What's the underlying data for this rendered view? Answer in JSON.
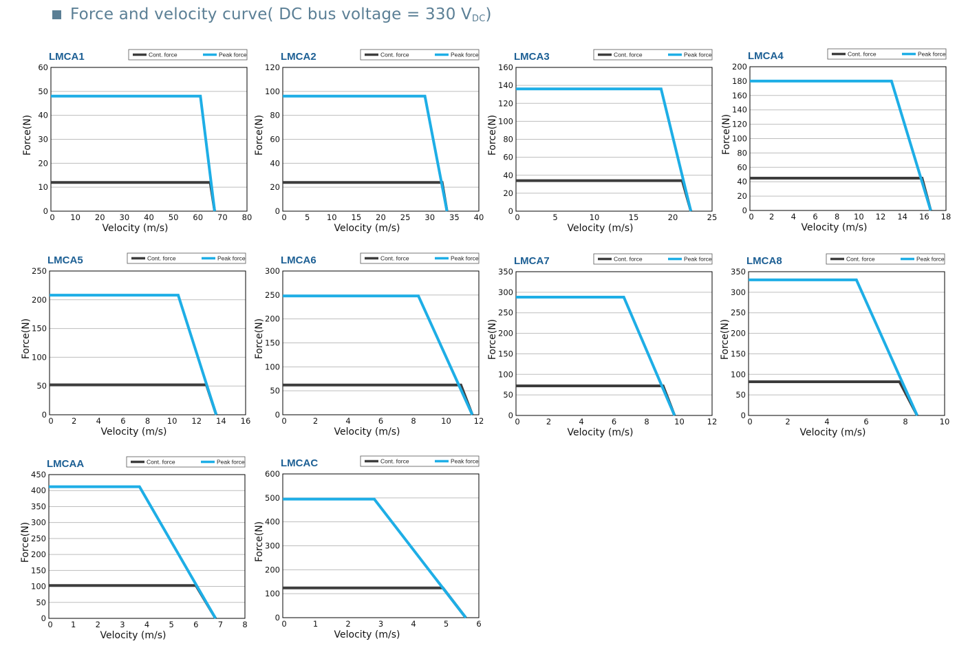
{
  "header": {
    "title_main": "Force and velocity curve( DC bus voltage = 330 V",
    "title_sub": "DC",
    "title_end": ")",
    "bullet_color": "#5b7f95",
    "text_color": "#5b7f95"
  },
  "colors": {
    "cont": "#3d3d3d",
    "peak": "#1eaee6",
    "title": "#1c5f94",
    "grid": "#bdbdbd",
    "axis": "#000000"
  },
  "chart_data": [
    {
      "type": "line",
      "title": "LMCA1",
      "xlabel": "Velocity (m/s)",
      "ylabel": "Force(N)",
      "xlim": [
        0,
        80
      ],
      "ylim": [
        0,
        60
      ],
      "xticks": [
        0,
        10,
        20,
        30,
        40,
        50,
        60,
        70,
        80
      ],
      "yticks": [
        0,
        10,
        20,
        30,
        40,
        50,
        60
      ],
      "grid": true,
      "legend": "top-right",
      "series": [
        {
          "name": "Cont. force",
          "x": [
            0,
            65,
            66.8
          ],
          "y": [
            12,
            12,
            0
          ]
        },
        {
          "name": "Peak force",
          "x": [
            0,
            61,
            66.8
          ],
          "y": [
            48,
            48,
            0
          ]
        }
      ]
    },
    {
      "type": "line",
      "title": "LMCA2",
      "xlabel": "Velocity (m/s)",
      "ylabel": "Force(N)",
      "xlim": [
        0,
        40
      ],
      "ylim": [
        0,
        120
      ],
      "xticks": [
        0,
        5,
        10,
        15,
        20,
        25,
        30,
        35,
        40
      ],
      "yticks": [
        0,
        20,
        40,
        60,
        80,
        100,
        120
      ],
      "grid": true,
      "legend": "top-right",
      "series": [
        {
          "name": "Cont. force",
          "x": [
            0,
            32.5,
            33.5
          ],
          "y": [
            24,
            24,
            0
          ]
        },
        {
          "name": "Peak force",
          "x": [
            0,
            29,
            33.5
          ],
          "y": [
            96,
            96,
            0
          ]
        }
      ]
    },
    {
      "type": "line",
      "title": "LMCA3",
      "xlabel": "Velocity (m/s)",
      "ylabel": "Force(N)",
      "xlim": [
        0,
        25
      ],
      "ylim": [
        0,
        160
      ],
      "xticks": [
        0,
        5,
        10,
        15,
        20,
        25
      ],
      "yticks": [
        0,
        20,
        40,
        60,
        80,
        100,
        120,
        140,
        160
      ],
      "grid": true,
      "legend": "top-right",
      "series": [
        {
          "name": "Cont. force",
          "x": [
            0,
            21.2,
            22.3
          ],
          "y": [
            34,
            34,
            0
          ]
        },
        {
          "name": "Peak force",
          "x": [
            0,
            18.5,
            22.3
          ],
          "y": [
            136,
            136,
            0
          ]
        }
      ]
    },
    {
      "type": "line",
      "title": "LMCA4",
      "xlabel": "Velocity (m/s)",
      "ylabel": "Force(N)",
      "xlim": [
        0,
        18
      ],
      "ylim": [
        0,
        200
      ],
      "xticks": [
        0,
        2,
        4,
        6,
        8,
        10,
        12,
        14,
        16,
        18
      ],
      "yticks": [
        0,
        20,
        40,
        60,
        80,
        100,
        120,
        140,
        160,
        180,
        200
      ],
      "grid": true,
      "legend": "top-right",
      "series": [
        {
          "name": "Cont. force",
          "x": [
            0,
            15.8,
            16.6
          ],
          "y": [
            45,
            45,
            0
          ]
        },
        {
          "name": "Peak force",
          "x": [
            0,
            13,
            16.6
          ],
          "y": [
            180,
            180,
            0
          ]
        }
      ]
    },
    {
      "type": "line",
      "title": "LMCA5",
      "xlabel": "Velocity (m/s)",
      "ylabel": "Force(N)",
      "xlim": [
        0,
        16
      ],
      "ylim": [
        0,
        250
      ],
      "xticks": [
        0,
        2,
        4,
        6,
        8,
        10,
        12,
        14,
        16
      ],
      "yticks": [
        0,
        50,
        100,
        150,
        200,
        250
      ],
      "grid": true,
      "legend": "top-right",
      "series": [
        {
          "name": "Cont. force",
          "x": [
            0,
            12.8,
            13.6
          ],
          "y": [
            52,
            52,
            0
          ]
        },
        {
          "name": "Peak force",
          "x": [
            0,
            10.5,
            13.6
          ],
          "y": [
            208,
            208,
            0
          ]
        }
      ]
    },
    {
      "type": "line",
      "title": "LMCA6",
      "xlabel": "Velocity (m/s)",
      "ylabel": "Force(N)",
      "xlim": [
        0,
        12
      ],
      "ylim": [
        0,
        300
      ],
      "xticks": [
        0,
        2,
        4,
        6,
        8,
        10,
        12
      ],
      "yticks": [
        0,
        50,
        100,
        150,
        200,
        250,
        300
      ],
      "grid": true,
      "legend": "top-right",
      "series": [
        {
          "name": "Cont. force",
          "x": [
            0,
            10.9,
            11.6
          ],
          "y": [
            62,
            62,
            0
          ]
        },
        {
          "name": "Peak force",
          "x": [
            0,
            8.3,
            11.6
          ],
          "y": [
            248,
            248,
            0
          ]
        }
      ]
    },
    {
      "type": "line",
      "title": "LMCA7",
      "xlabel": "Velocity (m/s)",
      "ylabel": "Force(N)",
      "xlim": [
        0,
        12
      ],
      "ylim": [
        0,
        350
      ],
      "xticks": [
        0,
        2,
        4,
        6,
        8,
        10,
        12
      ],
      "yticks": [
        0,
        50,
        100,
        150,
        200,
        250,
        300,
        350
      ],
      "grid": true,
      "legend": "top-right",
      "series": [
        {
          "name": "Cont. force",
          "x": [
            0,
            9,
            9.7
          ],
          "y": [
            72,
            72,
            0
          ]
        },
        {
          "name": "Peak force",
          "x": [
            0,
            6.6,
            9.7
          ],
          "y": [
            288,
            288,
            0
          ]
        }
      ]
    },
    {
      "type": "line",
      "title": "LMCA8",
      "xlabel": "Velocity (m/s)",
      "ylabel": "Force(N)",
      "xlim": [
        0,
        10
      ],
      "ylim": [
        0,
        350
      ],
      "xticks": [
        0,
        2,
        4,
        6,
        8,
        10
      ],
      "yticks": [
        0,
        50,
        100,
        150,
        200,
        250,
        300,
        350
      ],
      "grid": true,
      "legend": "top-right",
      "series": [
        {
          "name": "Cont. force",
          "x": [
            0,
            7.7,
            8.6
          ],
          "y": [
            82,
            82,
            0
          ]
        },
        {
          "name": "Peak force",
          "x": [
            0,
            5.5,
            8.6
          ],
          "y": [
            330,
            330,
            0
          ]
        }
      ]
    },
    {
      "type": "line",
      "title": "LMCAA",
      "xlabel": "Velocity (m/s)",
      "ylabel": "Force(N)",
      "xlim": [
        0,
        8
      ],
      "ylim": [
        0,
        450
      ],
      "xticks": [
        0,
        1,
        2,
        3,
        4,
        5,
        6,
        7,
        8
      ],
      "yticks": [
        0,
        50,
        100,
        150,
        200,
        250,
        300,
        350,
        400,
        450
      ],
      "grid": true,
      "legend": "top-right",
      "series": [
        {
          "name": "Cont. force",
          "x": [
            0,
            6,
            6.8
          ],
          "y": [
            103,
            103,
            0
          ]
        },
        {
          "name": "Peak force",
          "x": [
            0,
            3.7,
            6.8
          ],
          "y": [
            412,
            412,
            0
          ]
        }
      ]
    },
    {
      "type": "line",
      "title": "LMCAC",
      "xlabel": "Velocity (m/s)",
      "ylabel": "Force(N)",
      "xlim": [
        0,
        6
      ],
      "ylim": [
        0,
        600
      ],
      "xticks": [
        0,
        1,
        2,
        3,
        4,
        5,
        6
      ],
      "yticks": [
        0,
        100,
        200,
        300,
        400,
        500,
        600
      ],
      "grid": true,
      "legend": "top-right",
      "series": [
        {
          "name": "Cont. force",
          "x": [
            0,
            4.9,
            5.6
          ],
          "y": [
            124,
            124,
            0
          ]
        },
        {
          "name": "Peak force",
          "x": [
            0,
            2.8,
            5.6
          ],
          "y": [
            495,
            495,
            0
          ]
        }
      ]
    }
  ]
}
